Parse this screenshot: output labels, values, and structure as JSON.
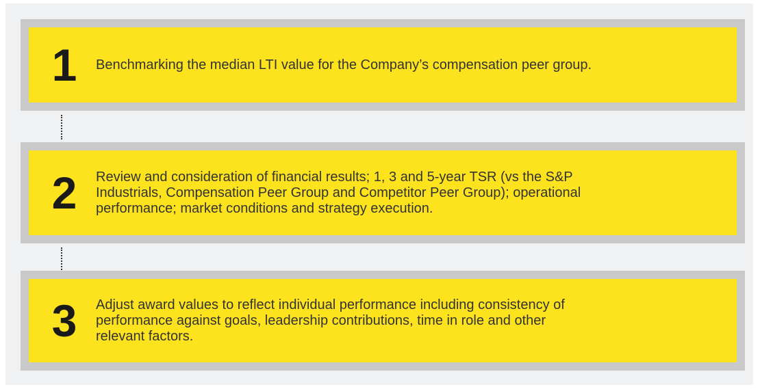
{
  "steps": [
    {
      "number": "1",
      "lines": [
        "Benchmarking the median LTI value for the Company’s compensation peer group."
      ]
    },
    {
      "number": "2",
      "lines": [
        "Review and consideration of financial results; 1, 3 and 5-year TSR (vs the S&P",
        "Industrials, Compensation Peer Group and Competitor Peer Group); operational",
        "performance; market conditions and strategy execution."
      ]
    },
    {
      "number": "3",
      "lines": [
        "Adjust award values to reflect individual performance including consistency of",
        "performance against goals, leadership contributions, time in role and other",
        "relevant factors."
      ]
    }
  ]
}
